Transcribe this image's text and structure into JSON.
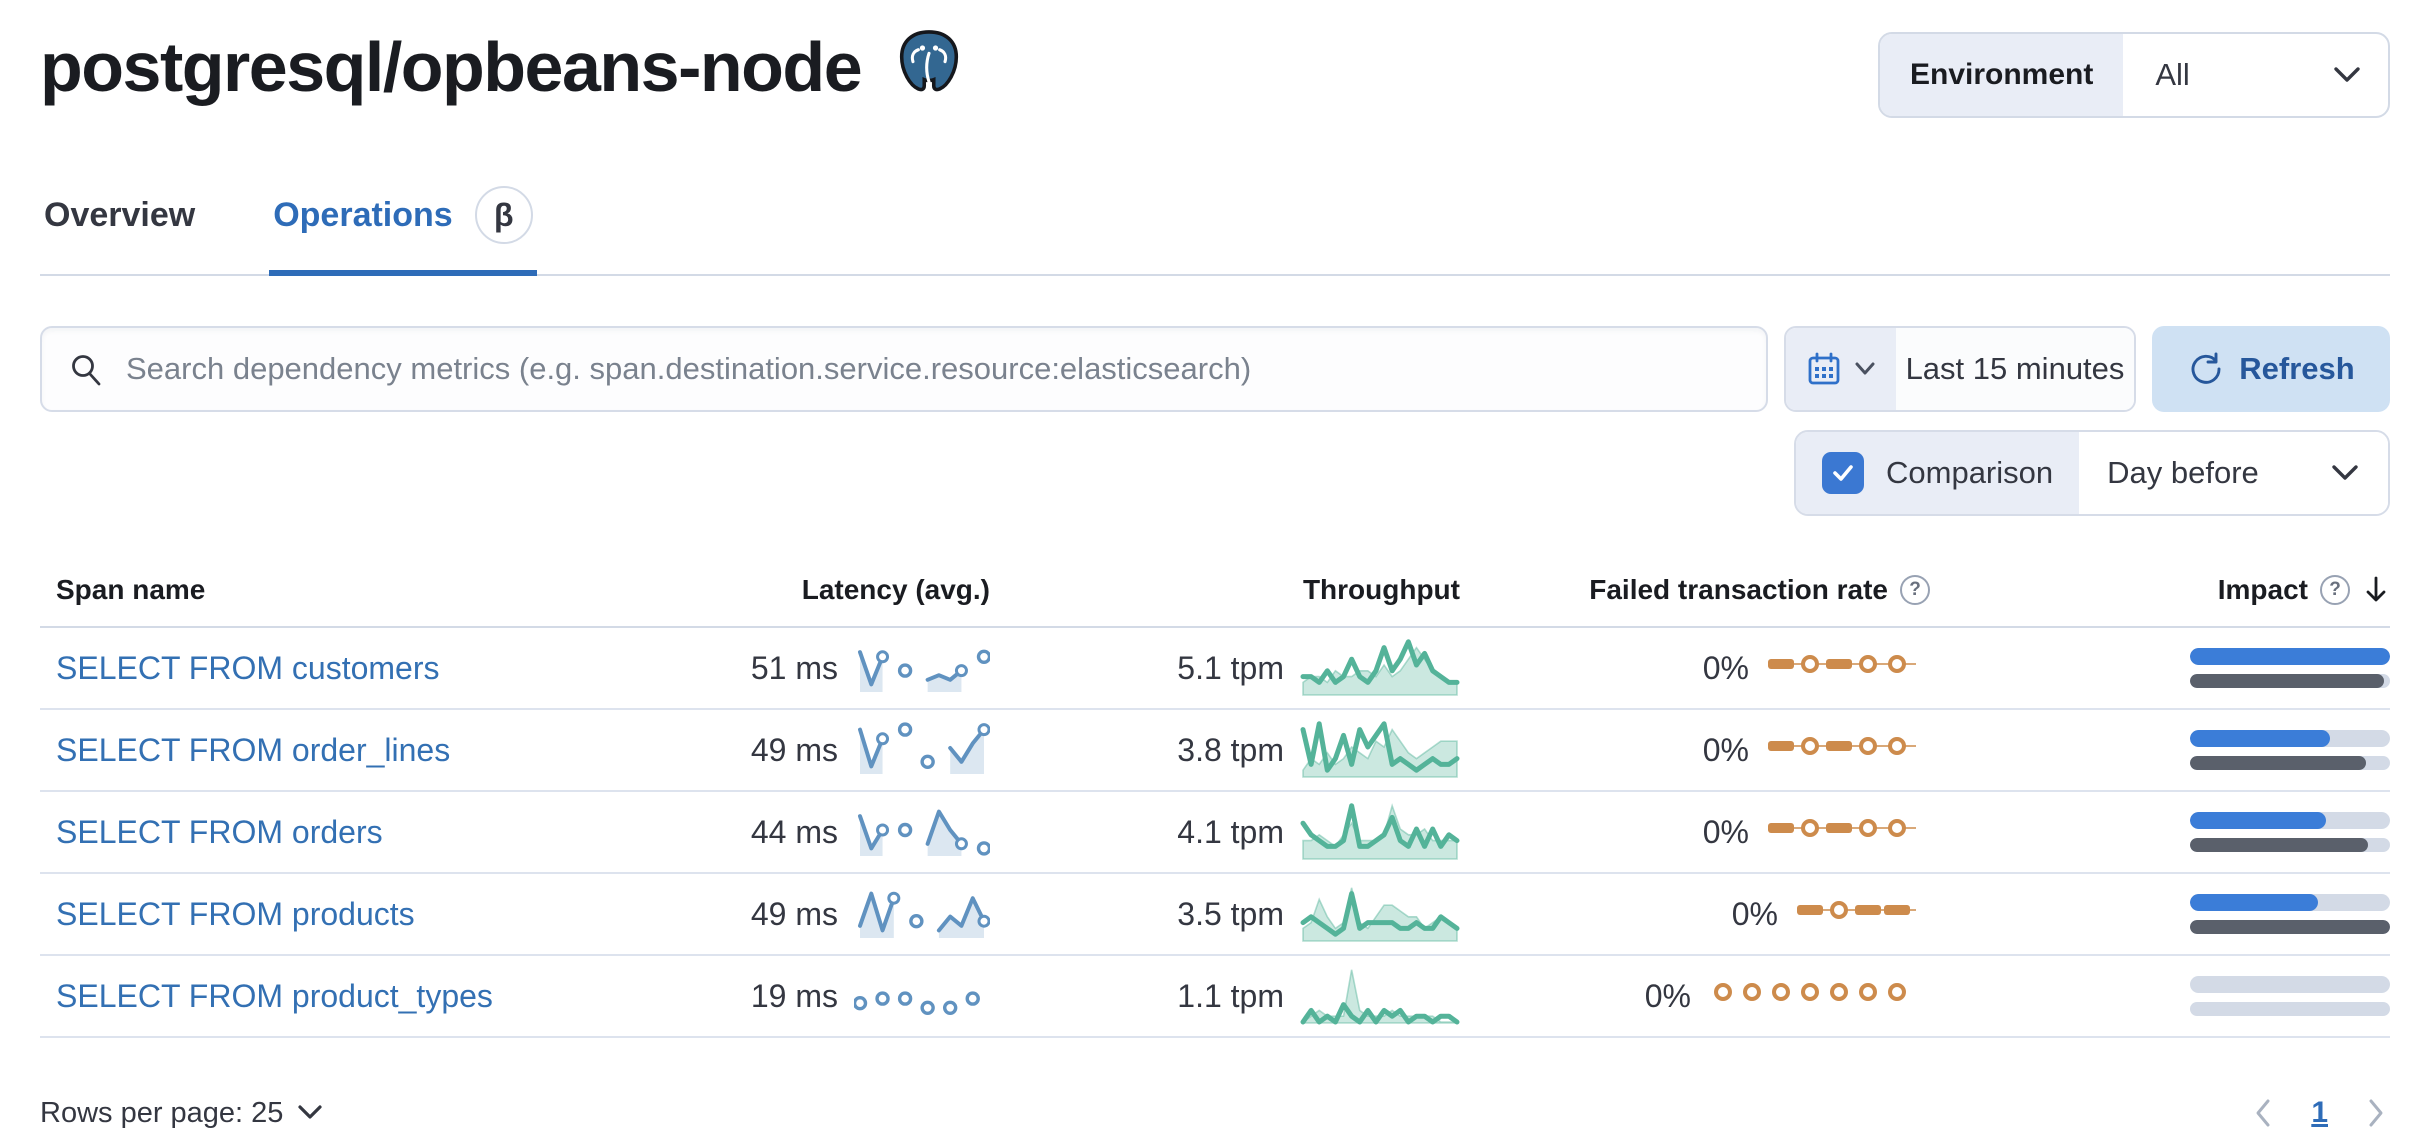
{
  "page": {
    "title": "postgresql/opbeans-node",
    "icon": "postgresql-logo"
  },
  "environment": {
    "label": "Environment",
    "value": "All"
  },
  "tabs": [
    {
      "label": "Overview",
      "active": false
    },
    {
      "label": "Operations",
      "active": true,
      "beta_label": "β"
    }
  ],
  "toolbar": {
    "search_placeholder": "Search dependency metrics (e.g. span.destination.service.resource:elasticsearch)",
    "time_range": "Last 15 minutes",
    "refresh_label": "Refresh",
    "comparison_label": "Comparison",
    "comparison_checked": true,
    "comparison_value": "Day before"
  },
  "table": {
    "columns": [
      "Span name",
      "Latency (avg.)",
      "Throughput",
      "Failed transaction rate",
      "Impact"
    ],
    "sorted_by": "Impact",
    "sort_direction": "desc",
    "rows": [
      {
        "span_name": "SELECT FROM customers",
        "latency": "51 ms",
        "throughput": "5.1 tpm",
        "failed_rate": "0%",
        "latency_spark": [
          8,
          1,
          7,
          null,
          4,
          null,
          2,
          3,
          2,
          4,
          null,
          7
        ],
        "throughput_spark": {
          "current": [
            3,
            3,
            2,
            4,
            2,
            3,
            6,
            3,
            2,
            4,
            8,
            4,
            6,
            9,
            5,
            7,
            4,
            3,
            2,
            2
          ],
          "previous": [
            2,
            3,
            3,
            2,
            4,
            3,
            3,
            4,
            4,
            3,
            5,
            3,
            4,
            6,
            8,
            6,
            4,
            3,
            2,
            2
          ]
        },
        "failed_spark": [
          "dash",
          "dot",
          "dash",
          "dot",
          "dot"
        ],
        "impact": {
          "current": 100,
          "previous": 97
        }
      },
      {
        "span_name": "SELECT FROM order_lines",
        "latency": "49 ms",
        "throughput": "3.8 tpm",
        "failed_rate": "0%",
        "latency_spark": [
          9,
          1,
          7,
          null,
          9,
          null,
          2,
          null,
          5,
          2,
          6,
          9
        ],
        "throughput_spark": {
          "current": [
            8,
            2,
            9,
            1,
            3,
            7,
            2,
            8,
            5,
            7,
            9,
            2,
            3,
            2,
            1,
            2,
            3,
            2,
            2,
            3
          ],
          "previous": [
            1,
            3,
            2,
            4,
            2,
            3,
            5,
            4,
            3,
            6,
            5,
            8,
            6,
            4,
            3,
            4,
            5,
            6,
            6,
            6
          ]
        },
        "failed_spark": [
          "dash",
          "dot",
          "dash",
          "dot",
          "dot"
        ],
        "impact": {
          "current": 70,
          "previous": 88
        }
      },
      {
        "span_name": "SELECT FROM orders",
        "latency": "44 ms",
        "throughput": "4.1 tpm",
        "failed_rate": "0%",
        "latency_spark": [
          8,
          1,
          5,
          null,
          5,
          null,
          2,
          9,
          5,
          2,
          null,
          1
        ],
        "throughput_spark": {
          "current": [
            6,
            4,
            3,
            2,
            2,
            3,
            9,
            2,
            2,
            3,
            4,
            7,
            3,
            2,
            5,
            2,
            5,
            2,
            4,
            3
          ],
          "previous": [
            3,
            3,
            4,
            3,
            2,
            4,
            6,
            3,
            3,
            3,
            4,
            9,
            5,
            4,
            4,
            5,
            3,
            3,
            3,
            3
          ]
        },
        "failed_spark": [
          "dash",
          "dot",
          "dash",
          "dot",
          "dot"
        ],
        "impact": {
          "current": 68,
          "previous": 89
        }
      },
      {
        "span_name": "SELECT FROM products",
        "latency": "49 ms",
        "throughput": "3.5 tpm",
        "failed_rate": "0%",
        "latency_spark": [
          2,
          9,
          1,
          8,
          null,
          3,
          null,
          1,
          4,
          2,
          8,
          3
        ],
        "throughput_spark": {
          "current": [
            3,
            4,
            3,
            2,
            1,
            2,
            8,
            2,
            3,
            3,
            3,
            3,
            2,
            2,
            3,
            2,
            2,
            4,
            3,
            2
          ],
          "previous": [
            2,
            3,
            7,
            4,
            2,
            3,
            9,
            3,
            2,
            4,
            6,
            6,
            5,
            4,
            4,
            2,
            3,
            4,
            3,
            2
          ]
        },
        "failed_spark": [
          "dash",
          "dot",
          "dash",
          "dash"
        ],
        "impact": {
          "current": 64,
          "previous": 100
        }
      },
      {
        "span_name": "SELECT FROM product_types",
        "latency": "19 ms",
        "throughput": "1.1 tpm",
        "failed_rate": "0%",
        "latency_spark": [
          3,
          null,
          4,
          null,
          4,
          null,
          2,
          null,
          2,
          null,
          4,
          null
        ],
        "throughput_spark": {
          "current": [
            0,
            2,
            0,
            1,
            0,
            3,
            1,
            0,
            2,
            0,
            2,
            1,
            2,
            0,
            1,
            1,
            0,
            1,
            1,
            0
          ],
          "previous": [
            0,
            1,
            2,
            1,
            1,
            1,
            9,
            2,
            1,
            1,
            1,
            2,
            1,
            1,
            1,
            1,
            1,
            0,
            0,
            0
          ]
        },
        "failed_spark": [
          "dot",
          "dot",
          "dot",
          "dot",
          "dot",
          "dot",
          "dot"
        ],
        "impact": {
          "current": 0,
          "previous": 0
        }
      }
    ]
  },
  "footer": {
    "rows_per_page": "Rows per page: 25",
    "page": "1"
  },
  "colors": {
    "link": "#3370b3",
    "tab_active": "#2e6cb8",
    "latency_spark": "#6092c0",
    "throughput_spark": "#54b399",
    "failed_spark": "#cd8b4c",
    "impact_bar": "#3b7dd8",
    "impact_comparison_bar": "#5a606b",
    "bar_track": "#d3dae6"
  }
}
